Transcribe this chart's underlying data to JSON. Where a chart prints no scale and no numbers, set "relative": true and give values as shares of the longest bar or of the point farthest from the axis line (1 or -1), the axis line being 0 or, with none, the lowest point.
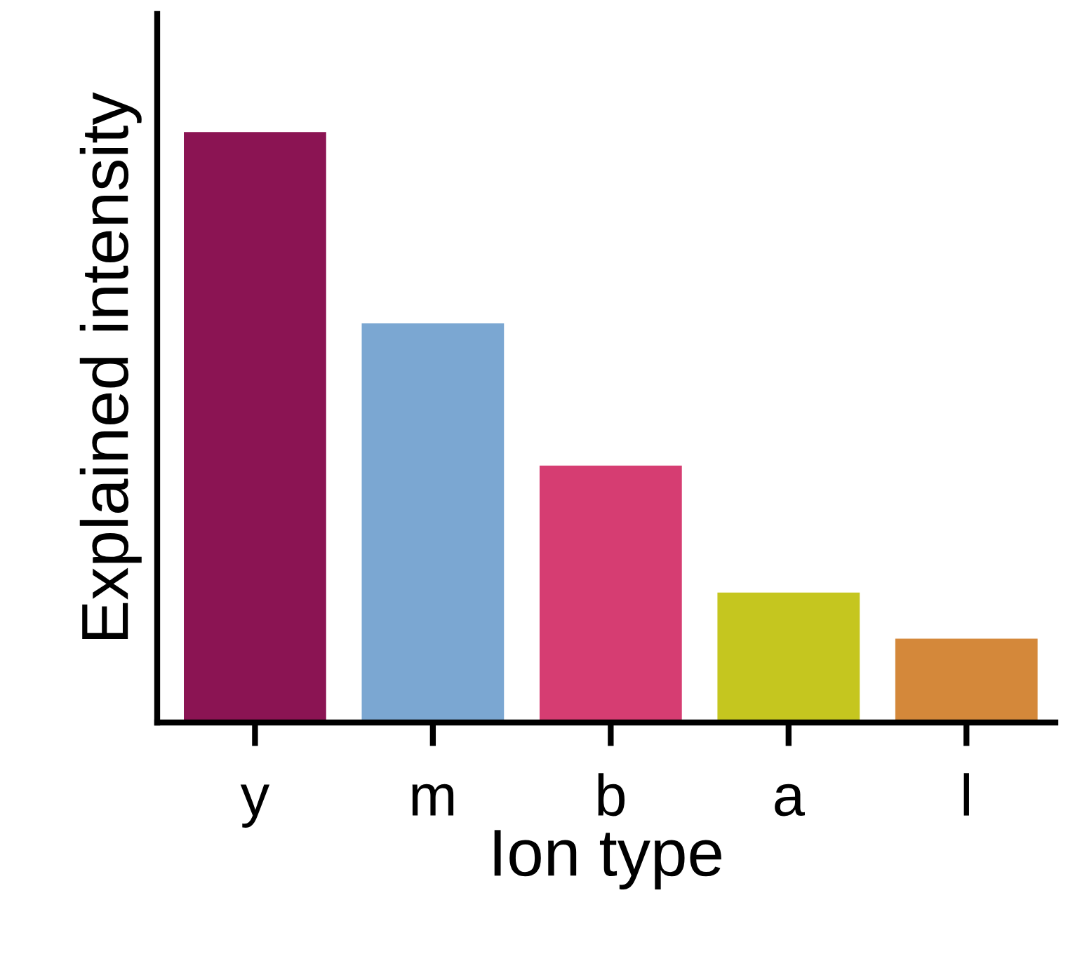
{
  "chart_data": {
    "type": "bar",
    "relative": true,
    "xlabel": "Ion type",
    "ylabel": "Explained intensity",
    "categories": [
      "y",
      "m",
      "b",
      "a",
      "l"
    ],
    "values": [
      1,
      0.676,
      0.435,
      0.22,
      0.142
    ],
    "colors": [
      "#8b1453",
      "#7ba7d2",
      "#d63d72",
      "#c5c61f",
      "#d4883a"
    ],
    "grid": false,
    "legend": false
  }
}
